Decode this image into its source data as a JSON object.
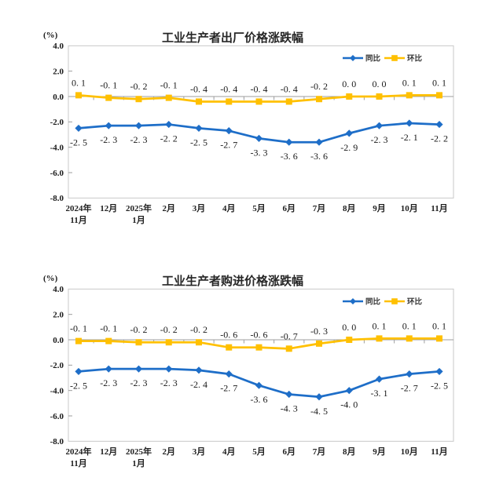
{
  "colors": {
    "axis_border": "#c8c8c8",
    "zero_line": "#9e9e9e",
    "blue_series": "#1e6ec8",
    "yellow_series": "#ffc000",
    "label_text": "#1a1a1a",
    "title_text": "#262626"
  },
  "chart_data": [
    {
      "type": "line",
      "title": "工业生产者出厂价格涨跌幅",
      "ylabel": "(%)",
      "ylim": [
        -8.0,
        4.0
      ],
      "ytick_step": 2.0,
      "yticks": [
        4.0,
        2.0,
        0.0,
        -2.0,
        -4.0,
        -6.0,
        -8.0
      ],
      "grid": false,
      "legend_position": "top-right-inside",
      "categories": [
        "2024年11月",
        "12月",
        "2025年1月",
        "2月",
        "3月",
        "4月",
        "5月",
        "6月",
        "7月",
        "8月",
        "9月",
        "10月",
        "11月"
      ],
      "categories_display": [
        [
          "2024年",
          "11月"
        ],
        [
          "12月"
        ],
        [
          "2025年",
          "1月"
        ],
        [
          "2月"
        ],
        [
          "3月"
        ],
        [
          "4月"
        ],
        [
          "5月"
        ],
        [
          "6月"
        ],
        [
          "7月"
        ],
        [
          "8月"
        ],
        [
          "9月"
        ],
        [
          "10月"
        ],
        [
          "11月"
        ]
      ],
      "series": [
        {
          "id": "yoy",
          "name": "同比",
          "color": "#1e6ec8",
          "marker": "diamond",
          "label_position": "below",
          "values": [
            -2.5,
            -2.3,
            -2.3,
            -2.2,
            -2.5,
            -2.7,
            -3.3,
            -3.6,
            -3.6,
            -2.9,
            -2.3,
            -2.1,
            -2.2
          ]
        },
        {
          "id": "mom",
          "name": "环比",
          "color": "#ffc000",
          "marker": "square",
          "label_position": "above",
          "values": [
            0.1,
            -0.1,
            -0.2,
            -0.1,
            -0.4,
            -0.4,
            -0.4,
            -0.4,
            -0.2,
            0.0,
            0.0,
            0.1,
            0.1
          ]
        }
      ]
    },
    {
      "type": "line",
      "title": "工业生产者购进价格涨跌幅",
      "ylabel": "(%)",
      "ylim": [
        -8.0,
        4.0
      ],
      "ytick_step": 2.0,
      "yticks": [
        4.0,
        2.0,
        0.0,
        -2.0,
        -4.0,
        -6.0,
        -8.0
      ],
      "grid": false,
      "legend_position": "top-right-inside",
      "categories": [
        "2024年11月",
        "12月",
        "2025年1月",
        "2月",
        "3月",
        "4月",
        "5月",
        "6月",
        "7月",
        "8月",
        "9月",
        "10月",
        "11月"
      ],
      "categories_display": [
        [
          "2024年",
          "11月"
        ],
        [
          "12月"
        ],
        [
          "2025年",
          "1月"
        ],
        [
          "2月"
        ],
        [
          "3月"
        ],
        [
          "4月"
        ],
        [
          "5月"
        ],
        [
          "6月"
        ],
        [
          "7月"
        ],
        [
          "8月"
        ],
        [
          "9月"
        ],
        [
          "10月"
        ],
        [
          "11月"
        ]
      ],
      "series": [
        {
          "id": "yoy",
          "name": "同比",
          "color": "#1e6ec8",
          "marker": "diamond",
          "label_position": "below",
          "values": [
            -2.5,
            -2.3,
            -2.3,
            -2.3,
            -2.4,
            -2.7,
            -3.6,
            -4.3,
            -4.5,
            -4.0,
            -3.1,
            -2.7,
            -2.5
          ]
        },
        {
          "id": "mom",
          "name": "环比",
          "color": "#ffc000",
          "marker": "square",
          "label_position": "above",
          "values": [
            -0.1,
            -0.1,
            -0.2,
            -0.2,
            -0.2,
            -0.6,
            -0.6,
            -0.7,
            -0.3,
            0.0,
            0.1,
            0.1,
            0.1
          ]
        }
      ]
    }
  ]
}
